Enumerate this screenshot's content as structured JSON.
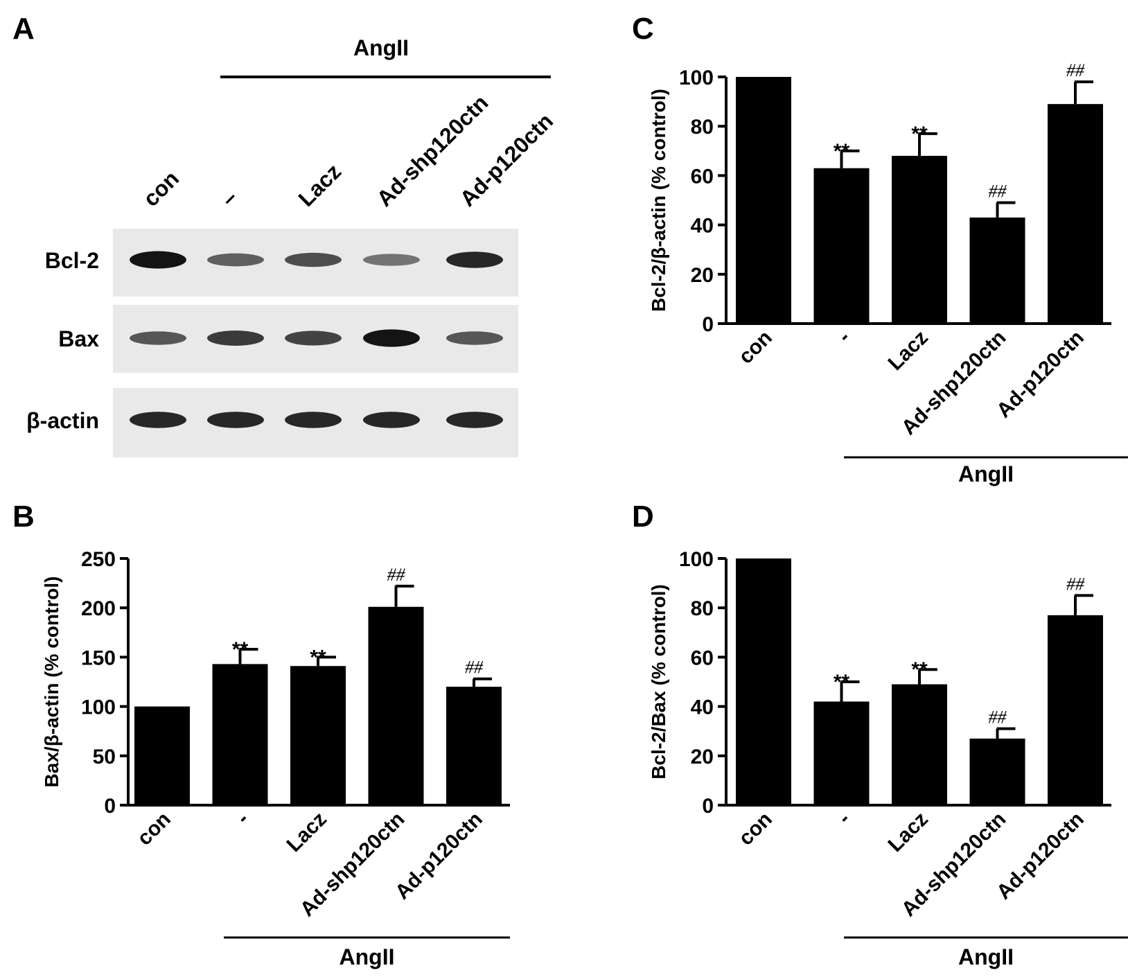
{
  "panels": {
    "A": {
      "letter": "A",
      "treatment": "AngII",
      "lanes": [
        "con",
        "–",
        "Lacz",
        "Ad-shp120ctn",
        "Ad-p120ctn"
      ],
      "rows": [
        "Bcl-2",
        "Bax",
        "β-actin"
      ],
      "band_intensity": {
        "Bcl-2": [
          0.95,
          0.55,
          0.65,
          0.45,
          0.85
        ],
        "Bax": [
          0.6,
          0.75,
          0.7,
          0.95,
          0.6
        ],
        "β-actin": [
          0.85,
          0.85,
          0.85,
          0.85,
          0.85
        ]
      }
    },
    "B": {
      "letter": "B",
      "treatment": "AngII"
    },
    "C": {
      "letter": "C",
      "treatment": "AngII"
    },
    "D": {
      "letter": "D",
      "treatment": "AngII"
    }
  },
  "chart_data": [
    {
      "panel": "B",
      "type": "bar",
      "categories": [
        "con",
        "-",
        "Lacz",
        "Ad-shp120ctn",
        "Ad-p120ctn"
      ],
      "values": [
        100,
        143,
        141,
        201,
        120
      ],
      "errors": [
        0,
        15,
        9,
        21,
        8
      ],
      "significance": [
        "",
        "**",
        "**",
        "##",
        "##"
      ],
      "ylabel": "Bax/β-actin (% control)",
      "ylim": [
        0,
        250
      ],
      "yticks": [
        0,
        50,
        100,
        150,
        200,
        250
      ],
      "group_label": "AngII",
      "bar_color": "#000000"
    },
    {
      "panel": "C",
      "type": "bar",
      "categories": [
        "con",
        "-",
        "Lacz",
        "Ad-shp120ctn",
        "Ad-p120ctn"
      ],
      "values": [
        100,
        63,
        68,
        43,
        89
      ],
      "errors": [
        0,
        7,
        9,
        6,
        9
      ],
      "significance": [
        "",
        "**",
        "**",
        "##",
        "##"
      ],
      "ylabel": "Bcl-2/β-actin (% control)",
      "ylim": [
        0,
        100
      ],
      "yticks": [
        0,
        20,
        40,
        60,
        80,
        100
      ],
      "group_label": "AngII",
      "bar_color": "#000000"
    },
    {
      "panel": "D",
      "type": "bar",
      "categories": [
        "con",
        "-",
        "Lacz",
        "Ad-shp120ctn",
        "Ad-p120ctn"
      ],
      "values": [
        100,
        42,
        49,
        27,
        77
      ],
      "errors": [
        0,
        8,
        6,
        4,
        8
      ],
      "significance": [
        "",
        "**",
        "**",
        "##",
        "##"
      ],
      "ylabel": "Bcl-2/Bax (% control)",
      "ylim": [
        0,
        100
      ],
      "yticks": [
        0,
        20,
        40,
        60,
        80,
        100
      ],
      "group_label": "AngII",
      "bar_color": "#000000"
    }
  ]
}
